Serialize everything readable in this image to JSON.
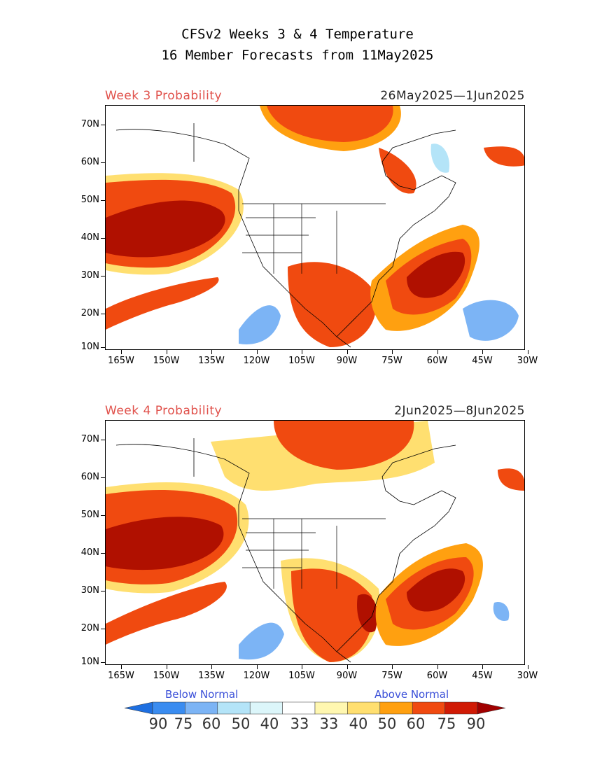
{
  "title": {
    "line1": "CFSv2 Weeks 3 & 4 Temperature",
    "line2": "16 Member Forecasts from 11May2025"
  },
  "panels": [
    {
      "label": "Week 3 Probability",
      "dates": "26May2025—1Jun2025",
      "lat_labels": [
        "70N",
        "60N",
        "50N",
        "40N",
        "30N",
        "20N",
        "10N"
      ],
      "lon_labels": [
        "165W",
        "150W",
        "135W",
        "120W",
        "105W",
        "90W",
        "75W",
        "60W",
        "45W",
        "30W"
      ]
    },
    {
      "label": "Week 4 Probability",
      "dates": "2Jun2025—8Jun2025",
      "lat_labels": [
        "70N",
        "60N",
        "50N",
        "40N",
        "30N",
        "20N",
        "10N"
      ],
      "lon_labels": [
        "165W",
        "150W",
        "135W",
        "120W",
        "105W",
        "90W",
        "75W",
        "60W",
        "45W",
        "30W"
      ]
    }
  ],
  "legend": {
    "below_label": "Below Normal",
    "above_label": "Above Normal",
    "values": [
      "90",
      "75",
      "60",
      "50",
      "40",
      "33",
      "33",
      "40",
      "50",
      "60",
      "75",
      "90"
    ],
    "colors": [
      "#1e6fe0",
      "#3a8cf0",
      "#7cb4f5",
      "#b4e4f8",
      "#dcf6fa",
      "#ffffff",
      "#fff7b0",
      "#ffdf70",
      "#ffa010",
      "#f04a10",
      "#d01a05",
      "#a00000"
    ]
  }
}
